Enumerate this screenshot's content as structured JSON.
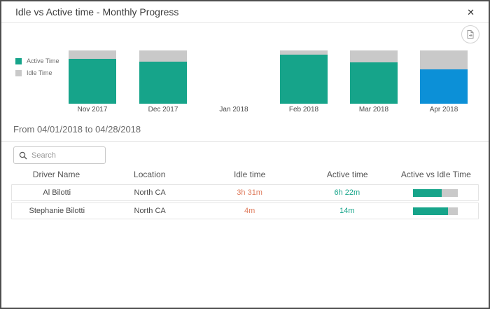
{
  "dialog": {
    "title": "Idle vs Active time - Monthly Progress",
    "close_glyph": "✕",
    "export_icon": "export-report-icon"
  },
  "colors": {
    "active": "#16a48a",
    "idle": "#c9c9c9",
    "selected": "#0c90d7",
    "idle_text": "#df7b5c",
    "active_text": "#16a48a"
  },
  "chart_data": {
    "type": "bar",
    "stacked": true,
    "unit": "percent of total time",
    "categories": [
      "Nov 2017",
      "Dec 2017",
      "Jan 2018",
      "Feb 2018",
      "Mar 2018",
      "Apr 2018"
    ],
    "series": [
      {
        "name": "Active Time",
        "color": "#16a48a",
        "values_pct": [
          84,
          79,
          0,
          92,
          78,
          64
        ]
      },
      {
        "name": "Idle Time",
        "color": "#c9c9c9",
        "values_pct": [
          16,
          21,
          0,
          8,
          22,
          36
        ]
      }
    ],
    "active_pct": {
      "0": 84,
      "1": 79,
      "2": 0,
      "3": 92,
      "4": 78,
      "5": 64
    },
    "idle_pct": {
      "0": 16,
      "1": 21,
      "2": 0,
      "3": 8,
      "4": 22,
      "5": 36
    },
    "selected_category": "Apr 2018",
    "selected_color": "#0c90d7",
    "legend_position": "left",
    "legend": [
      "Active Time",
      "Idle Time"
    ],
    "notes": "Jan 2018 has no data; Apr 2018 bar highlighted blue as selected month"
  },
  "period": {
    "label": "From 04/01/2018 to 04/28/2018"
  },
  "search": {
    "placeholder": "Search"
  },
  "table": {
    "columns": {
      "driver": "Driver Name",
      "location": "Location",
      "idle": "Idle time",
      "active": "Active time",
      "ratio": "Active vs Idle Time"
    },
    "rows": [
      {
        "driver": "Al Bilotti",
        "location": "North CA",
        "idle": "3h 31m",
        "active": "6h 22m",
        "active_pct": 64
      },
      {
        "driver": "Stephanie Bilotti",
        "location": "North CA",
        "idle": "4m",
        "active": "14m",
        "active_pct": 78
      }
    ]
  }
}
